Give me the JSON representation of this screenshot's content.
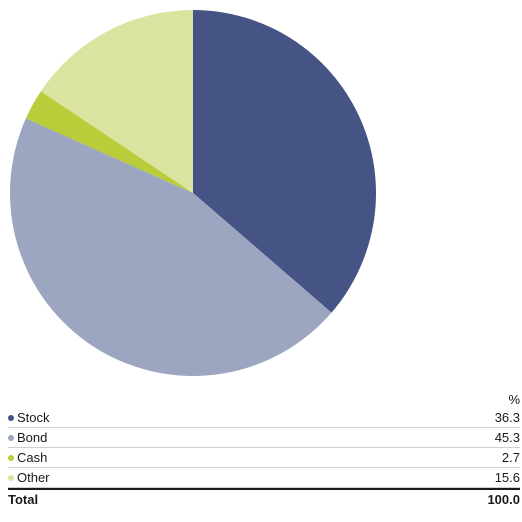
{
  "chart_data": {
    "type": "pie",
    "slices": [
      {
        "label": "Stock",
        "value": 36.3,
        "color": "#465385"
      },
      {
        "label": "Bond",
        "value": 45.3,
        "color": "#9da6c1"
      },
      {
        "label": "Cash",
        "value": 2.7,
        "color": "#b9cc3a"
      },
      {
        "label": "Other",
        "value": 15.6,
        "color": "#dbe3a0"
      }
    ],
    "start": "12 o'clock",
    "direction": "clockwise"
  },
  "table": {
    "unit_header": "%",
    "rows": [
      {
        "label": "Stock",
        "value": "36.3",
        "color": "#465385"
      },
      {
        "label": "Bond",
        "value": "45.3",
        "color": "#9da6c1"
      },
      {
        "label": "Cash",
        "value": "2.7",
        "color": "#b9cc3a"
      },
      {
        "label": "Other",
        "value": "15.6",
        "color": "#dbe3a0"
      }
    ],
    "total_label": "Total",
    "total_value": "100.0"
  }
}
